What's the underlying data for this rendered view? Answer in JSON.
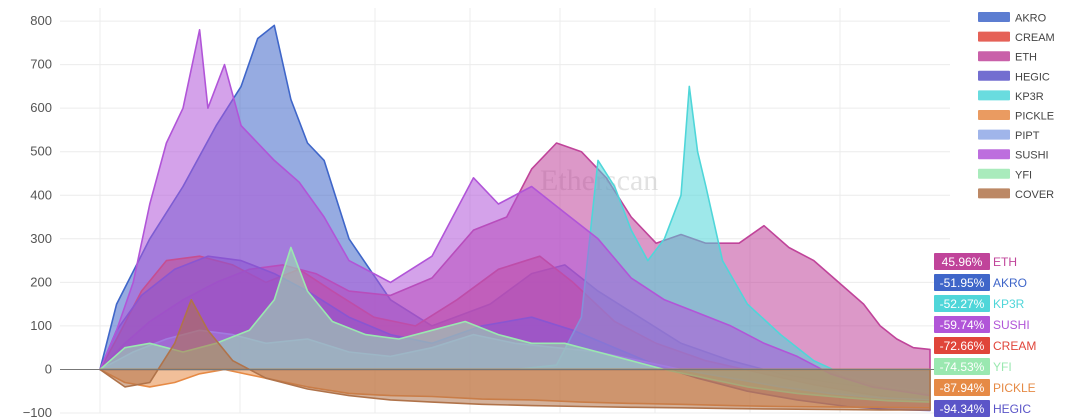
{
  "chart_data": {
    "type": "area",
    "title": "",
    "xlabel": "",
    "ylabel": "",
    "ylim": [
      -100,
      830
    ],
    "yticks": [
      -100,
      0,
      100,
      200,
      300,
      400,
      500,
      600,
      700,
      800
    ],
    "ytick_labels": [
      "−100",
      "0",
      "100",
      "200",
      "300",
      "400",
      "500",
      "600",
      "700",
      "800"
    ],
    "grid": true,
    "legend_position": "top-right",
    "watermark": "Etherscan",
    "series": [
      {
        "name": "AKRO",
        "color": "#3f66c9",
        "end_value": -51.95,
        "end_label": "-51.95%",
        "points": [
          [
            0.0,
            0
          ],
          [
            0.02,
            150
          ],
          [
            0.06,
            300
          ],
          [
            0.1,
            420
          ],
          [
            0.14,
            560
          ],
          [
            0.17,
            650
          ],
          [
            0.19,
            760
          ],
          [
            0.21,
            790
          ],
          [
            0.23,
            620
          ],
          [
            0.25,
            520
          ],
          [
            0.27,
            480
          ],
          [
            0.3,
            300
          ],
          [
            0.35,
            160
          ],
          [
            0.4,
            100
          ],
          [
            0.47,
            150
          ],
          [
            0.52,
            220
          ],
          [
            0.56,
            240
          ],
          [
            0.6,
            180
          ],
          [
            0.65,
            120
          ],
          [
            0.7,
            60
          ],
          [
            0.76,
            20
          ],
          [
            0.82,
            -10
          ],
          [
            0.88,
            -30
          ],
          [
            0.94,
            -45
          ],
          [
            1.0,
            -52
          ]
        ]
      },
      {
        "name": "CREAM",
        "color": "#e0453a",
        "end_value": -72.66,
        "end_label": "-72.66%",
        "points": [
          [
            0.0,
            0
          ],
          [
            0.02,
            70
          ],
          [
            0.05,
            180
          ],
          [
            0.08,
            250
          ],
          [
            0.12,
            260
          ],
          [
            0.16,
            240
          ],
          [
            0.2,
            200
          ],
          [
            0.24,
            230
          ],
          [
            0.28,
            180
          ],
          [
            0.33,
            120
          ],
          [
            0.38,
            100
          ],
          [
            0.43,
            160
          ],
          [
            0.48,
            230
          ],
          [
            0.53,
            260
          ],
          [
            0.57,
            200
          ],
          [
            0.62,
            110
          ],
          [
            0.67,
            60
          ],
          [
            0.73,
            20
          ],
          [
            0.8,
            -10
          ],
          [
            0.86,
            -35
          ],
          [
            0.92,
            -55
          ],
          [
            0.96,
            -65
          ],
          [
            1.0,
            -73
          ]
        ]
      },
      {
        "name": "ETH",
        "color": "#c0449a",
        "end_value": 45.96,
        "end_label": "45.96%",
        "points": [
          [
            0.0,
            0
          ],
          [
            0.03,
            60
          ],
          [
            0.06,
            110
          ],
          [
            0.1,
            160
          ],
          [
            0.14,
            200
          ],
          [
            0.18,
            230
          ],
          [
            0.22,
            240
          ],
          [
            0.26,
            220
          ],
          [
            0.3,
            180
          ],
          [
            0.35,
            170
          ],
          [
            0.4,
            210
          ],
          [
            0.45,
            320
          ],
          [
            0.49,
            350
          ],
          [
            0.52,
            460
          ],
          [
            0.55,
            520
          ],
          [
            0.58,
            500
          ],
          [
            0.61,
            440
          ],
          [
            0.64,
            350
          ],
          [
            0.67,
            290
          ],
          [
            0.7,
            310
          ],
          [
            0.73,
            290
          ],
          [
            0.77,
            290
          ],
          [
            0.8,
            330
          ],
          [
            0.83,
            280
          ],
          [
            0.86,
            250
          ],
          [
            0.89,
            200
          ],
          [
            0.92,
            150
          ],
          [
            0.94,
            100
          ],
          [
            0.96,
            70
          ],
          [
            0.98,
            50
          ],
          [
            1.0,
            46
          ]
        ]
      },
      {
        "name": "HEGIC",
        "color": "#5b55c8",
        "end_value": -94.34,
        "end_label": "-94.34%",
        "points": [
          [
            0.0,
            0
          ],
          [
            0.02,
            90
          ],
          [
            0.05,
            170
          ],
          [
            0.09,
            230
          ],
          [
            0.13,
            260
          ],
          [
            0.17,
            250
          ],
          [
            0.21,
            220
          ],
          [
            0.25,
            180
          ],
          [
            0.3,
            120
          ],
          [
            0.35,
            80
          ],
          [
            0.4,
            60
          ],
          [
            0.46,
            100
          ],
          [
            0.52,
            120
          ],
          [
            0.57,
            90
          ],
          [
            0.62,
            50
          ],
          [
            0.67,
            10
          ],
          [
            0.72,
            -20
          ],
          [
            0.78,
            -50
          ],
          [
            0.84,
            -70
          ],
          [
            0.9,
            -85
          ],
          [
            0.95,
            -92
          ],
          [
            1.0,
            -94
          ]
        ]
      },
      {
        "name": "KP3R",
        "color": "#4fd6d9",
        "end_value": -52.27,
        "end_label": "-52.27%",
        "points": [
          [
            0.0,
            0
          ],
          [
            0.1,
            0
          ],
          [
            0.2,
            0
          ],
          [
            0.3,
            0
          ],
          [
            0.4,
            0
          ],
          [
            0.5,
            0
          ],
          [
            0.55,
            10
          ],
          [
            0.58,
            120
          ],
          [
            0.6,
            480
          ],
          [
            0.62,
            420
          ],
          [
            0.64,
            320
          ],
          [
            0.66,
            250
          ],
          [
            0.68,
            300
          ],
          [
            0.7,
            400
          ],
          [
            0.71,
            650
          ],
          [
            0.72,
            500
          ],
          [
            0.73,
            420
          ],
          [
            0.75,
            250
          ],
          [
            0.78,
            150
          ],
          [
            0.82,
            80
          ],
          [
            0.86,
            20
          ],
          [
            0.9,
            -15
          ],
          [
            0.95,
            -40
          ],
          [
            1.0,
            -52
          ]
        ]
      },
      {
        "name": "PICKLE",
        "color": "#e68a45",
        "end_value": -87.94,
        "end_label": "-87.94%",
        "points": [
          [
            0.0,
            0
          ],
          [
            0.03,
            -30
          ],
          [
            0.06,
            -40
          ],
          [
            0.09,
            -30
          ],
          [
            0.12,
            -10
          ],
          [
            0.15,
            0
          ],
          [
            0.2,
            -20
          ],
          [
            0.25,
            -40
          ],
          [
            0.3,
            -55
          ],
          [
            0.35,
            -60
          ],
          [
            0.4,
            -62
          ],
          [
            0.46,
            -68
          ],
          [
            0.52,
            -70
          ],
          [
            0.58,
            -75
          ],
          [
            0.64,
            -78
          ],
          [
            0.7,
            -80
          ],
          [
            0.76,
            -83
          ],
          [
            0.82,
            -85
          ],
          [
            0.88,
            -86
          ],
          [
            0.94,
            -87
          ],
          [
            1.0,
            -88
          ]
        ]
      },
      {
        "name": "PIPT",
        "color": "#8fa8e6",
        "end_value": null,
        "end_label": "",
        "points": [
          [
            0.0,
            0
          ],
          [
            0.04,
            40
          ],
          [
            0.08,
            70
          ],
          [
            0.12,
            90
          ],
          [
            0.16,
            80
          ],
          [
            0.2,
            60
          ],
          [
            0.25,
            70
          ],
          [
            0.3,
            40
          ],
          [
            0.35,
            30
          ],
          [
            0.4,
            50
          ],
          [
            0.45,
            80
          ],
          [
            0.5,
            60
          ],
          [
            0.55,
            50
          ],
          [
            0.6,
            40
          ],
          [
            0.65,
            20
          ],
          [
            0.7,
            0
          ],
          [
            0.76,
            -20
          ],
          [
            0.82,
            -40
          ],
          [
            0.88,
            -55
          ],
          [
            0.94,
            -65
          ],
          [
            1.0,
            -70
          ]
        ]
      },
      {
        "name": "SUSHI",
        "color": "#b155d8",
        "end_value": -59.74,
        "end_label": "-59.74%",
        "points": [
          [
            0.0,
            0
          ],
          [
            0.02,
            90
          ],
          [
            0.04,
            200
          ],
          [
            0.06,
            380
          ],
          [
            0.08,
            520
          ],
          [
            0.1,
            600
          ],
          [
            0.12,
            780
          ],
          [
            0.13,
            600
          ],
          [
            0.15,
            700
          ],
          [
            0.17,
            560
          ],
          [
            0.19,
            520
          ],
          [
            0.21,
            480
          ],
          [
            0.24,
            430
          ],
          [
            0.27,
            350
          ],
          [
            0.3,
            250
          ],
          [
            0.35,
            200
          ],
          [
            0.4,
            260
          ],
          [
            0.45,
            440
          ],
          [
            0.48,
            380
          ],
          [
            0.52,
            420
          ],
          [
            0.56,
            360
          ],
          [
            0.6,
            300
          ],
          [
            0.64,
            210
          ],
          [
            0.68,
            160
          ],
          [
            0.72,
            130
          ],
          [
            0.76,
            100
          ],
          [
            0.8,
            60
          ],
          [
            0.84,
            30
          ],
          [
            0.88,
            -10
          ],
          [
            0.93,
            -40
          ],
          [
            1.0,
            -60
          ]
        ]
      },
      {
        "name": "YFI",
        "color": "#9ae8b0",
        "end_value": -74.53,
        "end_label": "-74.53%",
        "points": [
          [
            0.0,
            0
          ],
          [
            0.03,
            50
          ],
          [
            0.06,
            60
          ],
          [
            0.1,
            40
          ],
          [
            0.14,
            60
          ],
          [
            0.18,
            90
          ],
          [
            0.21,
            160
          ],
          [
            0.23,
            280
          ],
          [
            0.25,
            180
          ],
          [
            0.28,
            110
          ],
          [
            0.32,
            80
          ],
          [
            0.36,
            70
          ],
          [
            0.4,
            90
          ],
          [
            0.44,
            110
          ],
          [
            0.48,
            80
          ],
          [
            0.52,
            60
          ],
          [
            0.56,
            60
          ],
          [
            0.6,
            40
          ],
          [
            0.64,
            20
          ],
          [
            0.68,
            0
          ],
          [
            0.73,
            -20
          ],
          [
            0.78,
            -40
          ],
          [
            0.84,
            -55
          ],
          [
            0.9,
            -65
          ],
          [
            0.95,
            -72
          ],
          [
            1.0,
            -75
          ]
        ]
      },
      {
        "name": "COVER",
        "color": "#b0734a",
        "end_value": null,
        "end_label": "",
        "points": [
          [
            0.0,
            0
          ],
          [
            0.03,
            -40
          ],
          [
            0.06,
            -30
          ],
          [
            0.09,
            60
          ],
          [
            0.11,
            160
          ],
          [
            0.13,
            90
          ],
          [
            0.16,
            20
          ],
          [
            0.2,
            -20
          ],
          [
            0.25,
            -45
          ],
          [
            0.3,
            -60
          ],
          [
            0.35,
            -70
          ],
          [
            0.4,
            -75
          ],
          [
            0.46,
            -80
          ],
          [
            0.52,
            -83
          ],
          [
            0.58,
            -85
          ],
          [
            0.64,
            -87
          ],
          [
            0.7,
            -88
          ],
          [
            0.76,
            -90
          ],
          [
            0.82,
            -91
          ],
          [
            0.88,
            -92
          ],
          [
            0.94,
            -93
          ],
          [
            1.0,
            -93
          ]
        ]
      }
    ],
    "end_labels_order": [
      "ETH",
      "AKRO",
      "KP3R",
      "SUSHI",
      "CREAM",
      "YFI",
      "PICKLE",
      "HEGIC"
    ]
  }
}
